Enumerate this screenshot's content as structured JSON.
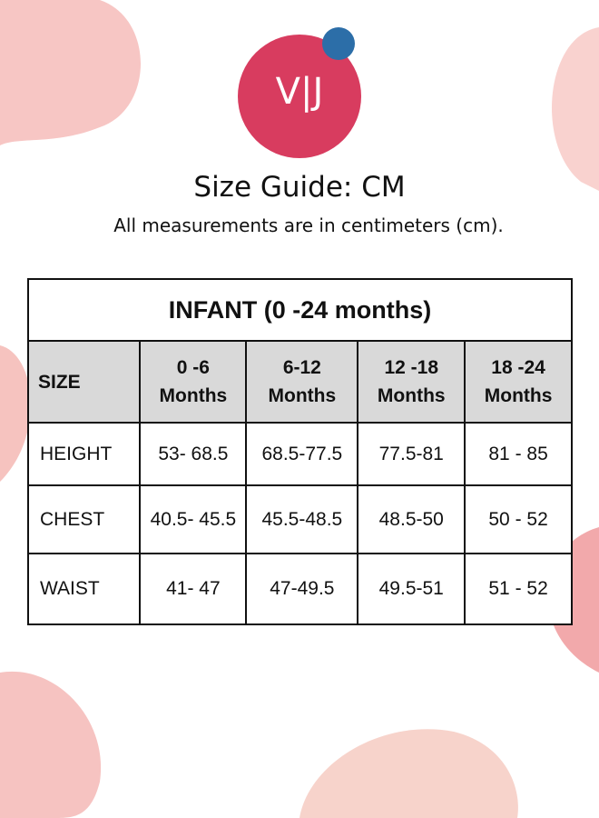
{
  "logo": {
    "text": "V|J"
  },
  "header": {
    "title": "Size Guide: CM",
    "subtitle": "All measurements are in centimeters (cm)."
  },
  "table": {
    "title": "INFANT (0 -24 months)",
    "columns": [
      "SIZE",
      "0 -6\nMonths",
      "6-12\nMonths",
      "12 -18\nMonths",
      "18 -24\nMonths"
    ],
    "rows": [
      [
        "HEIGHT",
        "53- 68.5",
        "68.5-77.5",
        "77.5-81",
        "81 - 85"
      ],
      [
        "CHEST",
        "40.5- 45.5",
        "45.5-48.5",
        "48.5-50",
        "50 - 52"
      ],
      [
        "WAIST",
        "41- 47",
        "47-49.5",
        "49.5-51",
        "51 - 52"
      ]
    ]
  }
}
